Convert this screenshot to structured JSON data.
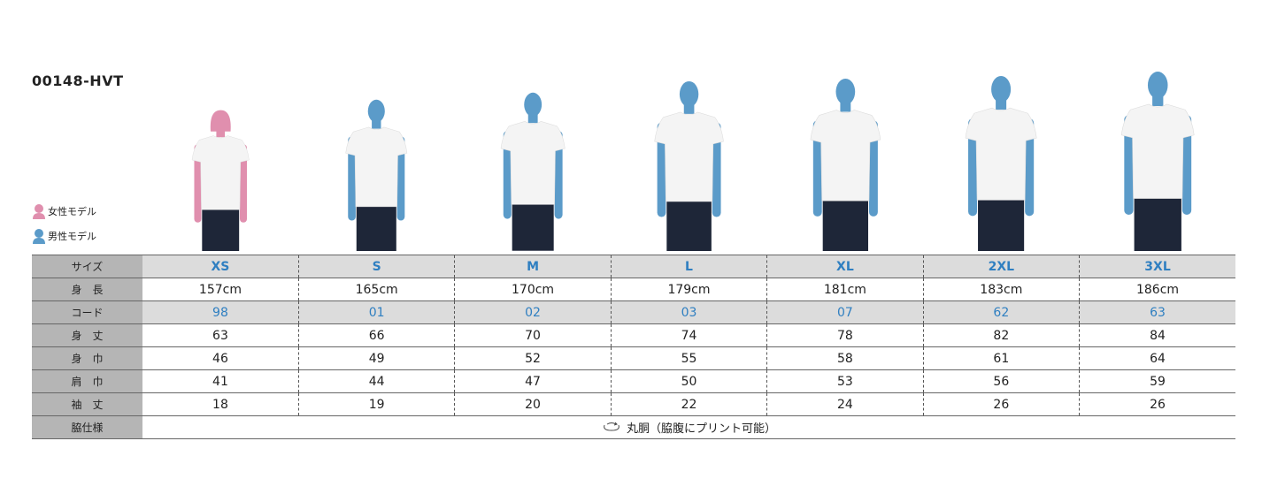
{
  "product_code": "00148-HVT",
  "legend": {
    "female": "女性モデル",
    "male": "男性モデル"
  },
  "colors": {
    "female": "#e08fae",
    "male": "#5b9bc9",
    "accent_text": "#2f7fc1",
    "jeans": "#1e2638",
    "shirt": "#f4f4f4"
  },
  "table": {
    "rows": [
      {
        "label": "サイズ",
        "values": [
          "XS",
          "S",
          "M",
          "L",
          "XL",
          "2XL",
          "3XL"
        ]
      },
      {
        "label": "身　長",
        "values": [
          "157cm",
          "165cm",
          "170cm",
          "179cm",
          "181cm",
          "183cm",
          "186cm"
        ]
      },
      {
        "label": "コード",
        "values": [
          "98",
          "01",
          "02",
          "03",
          "07",
          "62",
          "63"
        ]
      },
      {
        "label": "身　丈",
        "values": [
          "63",
          "66",
          "70",
          "74",
          "78",
          "82",
          "84"
        ]
      },
      {
        "label": "身　巾",
        "values": [
          "46",
          "49",
          "52",
          "55",
          "58",
          "61",
          "64"
        ]
      },
      {
        "label": "肩　巾",
        "values": [
          "41",
          "44",
          "47",
          "50",
          "53",
          "56",
          "59"
        ]
      },
      {
        "label": "袖　丈",
        "values": [
          "18",
          "19",
          "20",
          "22",
          "24",
          "26",
          "26"
        ]
      }
    ],
    "side_spec": {
      "label": "脇仕様",
      "icon": "round-body-icon",
      "value": "丸胴（脇腹にプリント可能）"
    }
  },
  "models": [
    {
      "gender": "female",
      "height_cm": 157
    },
    {
      "gender": "male",
      "height_cm": 165
    },
    {
      "gender": "male",
      "height_cm": 170
    },
    {
      "gender": "male",
      "height_cm": 179
    },
    {
      "gender": "male",
      "height_cm": 181
    },
    {
      "gender": "male",
      "height_cm": 183
    },
    {
      "gender": "male",
      "height_cm": 186
    }
  ]
}
